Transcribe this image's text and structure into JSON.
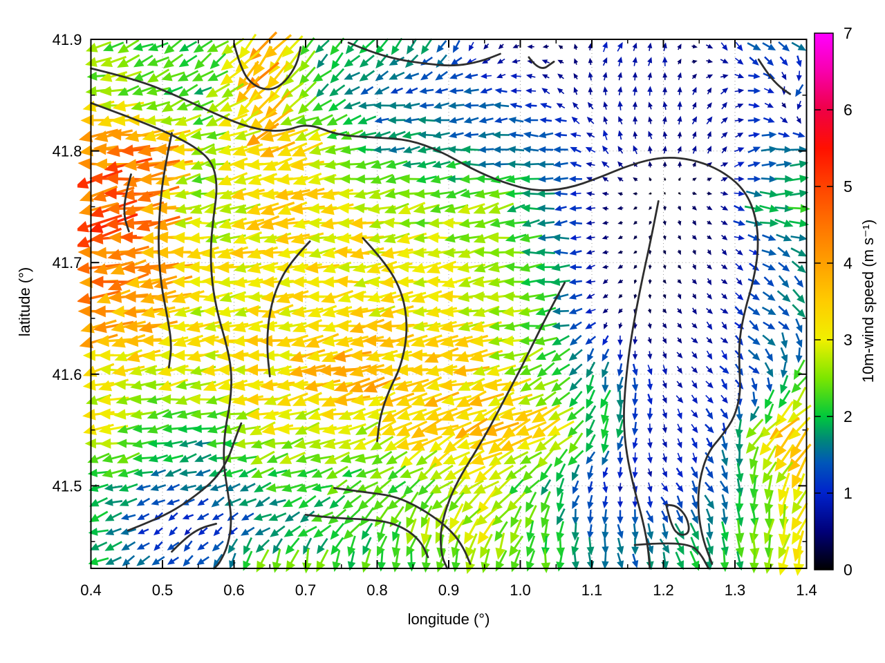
{
  "axes": {
    "x": {
      "label": "longitude (°)",
      "range": [
        0.4,
        1.4
      ],
      "ticks": [
        0.4,
        0.5,
        0.6,
        0.7,
        0.8,
        0.9,
        1.0,
        1.1,
        1.2,
        1.3,
        1.4
      ],
      "tick_labels": [
        "0.4",
        "0.5",
        "0.6",
        "0.7",
        "0.8",
        "0.9",
        "1.0",
        "1.1",
        "1.2",
        "1.3",
        "1.4"
      ],
      "minor_step": 0.05
    },
    "y": {
      "label": "latitude (°)",
      "range": [
        41.426,
        41.9
      ],
      "ticks": [
        41.5,
        41.6,
        41.7,
        41.8,
        41.9
      ],
      "tick_labels": [
        "41.5",
        "41.6",
        "41.7",
        "41.8",
        "41.9"
      ],
      "minor_ticks": [
        41.45,
        41.55,
        41.65,
        41.75,
        41.85
      ]
    }
  },
  "colorbar": {
    "label": "10m-wind speed (m s⁻¹)",
    "range": [
      0,
      7
    ],
    "ticks": [
      0,
      1,
      2,
      3,
      4,
      5,
      6,
      7
    ],
    "tick_labels": [
      "0",
      "1",
      "2",
      "3",
      "4",
      "5",
      "6",
      "7"
    ],
    "palette": [
      [
        0.0,
        "#000000"
      ],
      [
        0.5,
        "#000078"
      ],
      [
        1.0,
        "#0022cc"
      ],
      [
        1.4,
        "#0057b8"
      ],
      [
        1.7,
        "#008878"
      ],
      [
        2.0,
        "#00c83c"
      ],
      [
        2.5,
        "#7ce600"
      ],
      [
        3.0,
        "#f0f000"
      ],
      [
        3.5,
        "#ffcc00"
      ],
      [
        4.0,
        "#ffa000"
      ],
      [
        4.5,
        "#ff7300"
      ],
      [
        5.0,
        "#ff4300"
      ],
      [
        5.5,
        "#ff1000"
      ],
      [
        6.0,
        "#ef0045"
      ],
      [
        6.5,
        "#f800ac"
      ],
      [
        7.0,
        "#ff00ff"
      ]
    ]
  },
  "style": {
    "contour_color": "#2e2e2e",
    "grid_color": "#9a9a9a",
    "border_color": "#000000",
    "text_color": "#000000"
  },
  "chart_data": {
    "type": "quiver",
    "title": "",
    "xlabel": "longitude (°)",
    "ylabel": "latitude (°)",
    "xlim": [
      0.4,
      1.4
    ],
    "ylim": [
      41.426,
      41.9
    ],
    "grid": true,
    "colorbar_label": "10m-wind speed (m s⁻¹)",
    "colorbar_range": [
      0,
      7
    ],
    "vector_grid": {
      "nx": 48,
      "ny": 36
    },
    "wind_field": {
      "lons": [
        0.4,
        0.48,
        0.56,
        0.64,
        0.72,
        0.8,
        0.88,
        0.96,
        1.04,
        1.12,
        1.2,
        1.28,
        1.34,
        1.4
      ],
      "lats": [
        41.9,
        41.85,
        41.8,
        41.75,
        41.7,
        41.65,
        41.6,
        41.55,
        41.5,
        41.46,
        41.426
      ],
      "speed_ms": [
        [
          2.4,
          2.3,
          2.0,
          3.6,
          2.0,
          2.0,
          1.8,
          0.5,
          0.5,
          0.9,
          0.8,
          1.1,
          1.4,
          1.8
        ],
        [
          2.8,
          2.5,
          2.1,
          4.0,
          2.0,
          1.4,
          1.3,
          1.4,
          0.8,
          0.8,
          0.7,
          0.8,
          1.2,
          1.8
        ],
        [
          4.3,
          4.7,
          2.2,
          3.6,
          3.0,
          1.8,
          1.8,
          1.5,
          1.6,
          0.9,
          0.6,
          0.7,
          1.3,
          1.9
        ],
        [
          4.8,
          4.7,
          2.3,
          3.4,
          3.2,
          3.0,
          2.4,
          2.6,
          1.5,
          0.5,
          0.3,
          0.6,
          2.0,
          2.2
        ],
        [
          4.6,
          4.2,
          3.1,
          3.2,
          3.2,
          3.2,
          3.0,
          2.6,
          1.9,
          0.5,
          0.3,
          0.5,
          1.2,
          1.6
        ],
        [
          4.1,
          3.8,
          3.0,
          3.2,
          3.4,
          3.2,
          3.2,
          2.8,
          2.2,
          0.5,
          0.4,
          0.8,
          1.4,
          1.6
        ],
        [
          2.9,
          3.0,
          3.0,
          3.2,
          3.6,
          3.8,
          3.6,
          3.2,
          2.4,
          1.6,
          0.8,
          0.9,
          1.5,
          2.6
        ],
        [
          3.1,
          2.2,
          2.0,
          3.0,
          2.8,
          3.0,
          3.4,
          3.6,
          3.2,
          2.0,
          0.8,
          1.2,
          3.0,
          3.8
        ],
        [
          2.2,
          1.6,
          1.5,
          2.0,
          2.2,
          2.2,
          2.6,
          2.8,
          2.0,
          0.9,
          0.8,
          1.6,
          2.6,
          3.4
        ],
        [
          2.0,
          1.1,
          0.9,
          1.5,
          2.0,
          2.2,
          2.6,
          2.8,
          2.0,
          1.4,
          1.6,
          1.8,
          2.4,
          3.0
        ],
        [
          2.0,
          1.4,
          1.6,
          2.6,
          2.4,
          2.2,
          2.4,
          2.6,
          2.2,
          1.5,
          1.8,
          2.0,
          2.4,
          3.0
        ]
      ],
      "dir_toward_deg": [
        [
          250,
          245,
          235,
          225,
          220,
          215,
          215,
          200,
          270,
          30,
          10,
          140,
          130,
          120
        ],
        [
          260,
          255,
          240,
          220,
          235,
          260,
          265,
          265,
          300,
          0,
          355,
          45,
          100,
          230
        ],
        [
          265,
          262,
          258,
          255,
          258,
          262,
          265,
          268,
          265,
          320,
          0,
          30,
          85,
          95
        ],
        [
          262,
          260,
          262,
          258,
          260,
          262,
          258,
          260,
          265,
          270,
          180,
          120,
          95,
          90
        ],
        [
          258,
          260,
          263,
          260,
          262,
          264,
          262,
          262,
          268,
          250,
          160,
          140,
          120,
          130
        ],
        [
          260,
          262,
          264,
          262,
          260,
          262,
          263,
          262,
          260,
          220,
          150,
          135,
          130,
          135
        ],
        [
          262,
          263,
          262,
          260,
          258,
          256,
          258,
          260,
          240,
          190,
          150,
          140,
          135,
          215
        ],
        [
          262,
          260,
          258,
          255,
          256,
          252,
          248,
          245,
          242,
          200,
          160,
          145,
          220,
          225
        ],
        [
          258,
          252,
          248,
          252,
          250,
          235,
          230,
          235,
          210,
          180,
          150,
          150,
          190,
          215
        ],
        [
          252,
          235,
          225,
          240,
          230,
          210,
          200,
          215,
          195,
          180,
          160,
          170,
          185,
          200
        ],
        [
          245,
          230,
          225,
          195,
          190,
          185,
          190,
          195,
          185,
          180,
          160,
          175,
          185,
          195
        ]
      ]
    },
    "contours": [
      [
        [
          0.4,
          41.874
        ],
        [
          0.465,
          41.864
        ],
        [
          0.525,
          41.848
        ],
        [
          0.578,
          41.832
        ],
        [
          0.625,
          41.82
        ],
        [
          0.668,
          41.817
        ],
        [
          0.703,
          41.825
        ],
        [
          0.745,
          41.814
        ],
        [
          0.8,
          41.812
        ],
        [
          0.845,
          41.81
        ],
        [
          0.888,
          41.8
        ],
        [
          0.932,
          41.784
        ],
        [
          0.975,
          41.772
        ],
        [
          1.02,
          41.764
        ],
        [
          1.065,
          41.766
        ],
        [
          1.11,
          41.776
        ],
        [
          1.155,
          41.788
        ],
        [
          1.2,
          41.795
        ],
        [
          1.245,
          41.792
        ],
        [
          1.285,
          41.781
        ],
        [
          1.315,
          41.764
        ],
        [
          1.33,
          41.74
        ],
        [
          1.333,
          41.712
        ],
        [
          1.326,
          41.684
        ],
        [
          1.314,
          41.658
        ],
        [
          1.306,
          41.632
        ],
        [
          1.306,
          41.606
        ],
        [
          1.308,
          41.584
        ],
        [
          1.3,
          41.562
        ],
        [
          1.282,
          41.545
        ],
        [
          1.262,
          41.53
        ],
        [
          1.25,
          41.505
        ],
        [
          1.248,
          41.478
        ],
        [
          1.255,
          41.452
        ],
        [
          1.268,
          41.43
        ]
      ],
      [
        [
          1.193,
          41.755
        ],
        [
          1.183,
          41.722
        ],
        [
          1.172,
          41.69
        ],
        [
          1.162,
          41.658
        ],
        [
          1.153,
          41.625
        ],
        [
          1.147,
          41.592
        ],
        [
          1.144,
          41.56
        ],
        [
          1.148,
          41.53
        ],
        [
          1.158,
          41.5
        ],
        [
          1.17,
          41.472
        ],
        [
          1.178,
          41.448
        ],
        [
          1.181,
          41.426
        ]
      ],
      [
        [
          0.4,
          41.843
        ],
        [
          0.455,
          41.83
        ],
        [
          0.505,
          41.817
        ],
        [
          0.545,
          41.804
        ],
        [
          0.57,
          41.79
        ],
        [
          0.577,
          41.768
        ],
        [
          0.571,
          41.74
        ],
        [
          0.567,
          41.712
        ],
        [
          0.569,
          41.682
        ],
        [
          0.577,
          41.654
        ],
        [
          0.589,
          41.628
        ],
        [
          0.597,
          41.602
        ],
        [
          0.595,
          41.575
        ],
        [
          0.587,
          41.549
        ],
        [
          0.585,
          41.521
        ],
        [
          0.591,
          41.495
        ],
        [
          0.597,
          41.47
        ],
        [
          0.592,
          41.447
        ],
        [
          0.58,
          41.431
        ],
        [
          0.572,
          41.426
        ]
      ],
      [
        [
          0.513,
          41.816
        ],
        [
          0.502,
          41.782
        ],
        [
          0.496,
          41.748
        ],
        [
          0.494,
          41.713
        ],
        [
          0.498,
          41.68
        ],
        [
          0.507,
          41.651
        ],
        [
          0.513,
          41.626
        ],
        [
          0.509,
          41.606
        ]
      ],
      [
        [
          0.456,
          41.779
        ],
        [
          0.448,
          41.76
        ],
        [
          0.446,
          41.742
        ],
        [
          0.453,
          41.728
        ]
      ],
      [
        [
          0.6,
          41.896
        ],
        [
          0.61,
          41.872
        ],
        [
          0.628,
          41.858
        ],
        [
          0.652,
          41.854
        ],
        [
          0.672,
          41.862
        ],
        [
          0.688,
          41.878
        ],
        [
          0.693,
          41.893
        ]
      ],
      [
        [
          0.76,
          41.897
        ],
        [
          0.79,
          41.889
        ],
        [
          0.828,
          41.882
        ],
        [
          0.868,
          41.878
        ],
        [
          0.908,
          41.876
        ],
        [
          0.944,
          41.88
        ],
        [
          0.972,
          41.887
        ]
      ],
      [
        [
          1.012,
          41.884
        ],
        [
          1.027,
          41.871
        ],
        [
          1.047,
          41.88
        ]
      ],
      [
        [
          1.333,
          41.882
        ],
        [
          1.347,
          41.868
        ],
        [
          1.363,
          41.857
        ],
        [
          1.377,
          41.851
        ]
      ],
      [
        [
          0.78,
          41.722
        ],
        [
          0.812,
          41.7
        ],
        [
          0.836,
          41.672
        ],
        [
          0.843,
          41.64
        ],
        [
          0.834,
          41.608
        ],
        [
          0.816,
          41.585
        ],
        [
          0.804,
          41.562
        ],
        [
          0.8,
          41.54
        ]
      ],
      [
        [
          0.706,
          41.719
        ],
        [
          0.678,
          41.7
        ],
        [
          0.658,
          41.676
        ],
        [
          0.648,
          41.65
        ],
        [
          0.646,
          41.622
        ],
        [
          0.65,
          41.598
        ]
      ],
      [
        [
          1.062,
          41.682
        ],
        [
          1.04,
          41.656
        ],
        [
          1.016,
          41.625
        ],
        [
          0.999,
          41.603
        ],
        [
          0.98,
          41.58
        ],
        [
          0.958,
          41.553
        ],
        [
          0.935,
          41.528
        ],
        [
          0.913,
          41.505
        ],
        [
          0.897,
          41.482
        ],
        [
          0.888,
          41.458
        ],
        [
          0.89,
          41.437
        ],
        [
          0.898,
          41.426
        ]
      ],
      [
        [
          0.74,
          41.498
        ],
        [
          0.786,
          41.494
        ],
        [
          0.822,
          41.491
        ],
        [
          0.852,
          41.483
        ],
        [
          0.882,
          41.471
        ],
        [
          0.906,
          41.458
        ],
        [
          0.921,
          41.444
        ],
        [
          0.93,
          41.43
        ]
      ],
      [
        [
          0.7,
          41.474
        ],
        [
          0.74,
          41.471
        ],
        [
          0.786,
          41.47
        ],
        [
          0.82,
          41.467
        ],
        [
          0.846,
          41.459
        ],
        [
          0.863,
          41.448
        ],
        [
          0.871,
          41.436
        ]
      ],
      [
        [
          0.452,
          41.46
        ],
        [
          0.487,
          41.469
        ],
        [
          0.516,
          41.478
        ],
        [
          0.546,
          41.491
        ],
        [
          0.574,
          41.506
        ],
        [
          0.592,
          41.524
        ],
        [
          0.602,
          41.543
        ],
        [
          0.61,
          41.556
        ]
      ],
      [
        [
          1.204,
          41.483
        ],
        [
          1.211,
          41.463
        ],
        [
          1.224,
          41.455
        ],
        [
          1.237,
          41.458
        ],
        [
          1.233,
          41.472
        ],
        [
          1.219,
          41.482
        ],
        [
          1.204,
          41.483
        ]
      ],
      [
        [
          1.16,
          41.447
        ],
        [
          1.2,
          41.449
        ],
        [
          1.24,
          41.447
        ],
        [
          1.253,
          41.438
        ],
        [
          1.263,
          41.426
        ]
      ],
      [
        [
          0.513,
          41.441
        ],
        [
          0.53,
          41.452
        ],
        [
          0.552,
          41.462
        ],
        [
          0.575,
          41.466
        ]
      ]
    ]
  }
}
